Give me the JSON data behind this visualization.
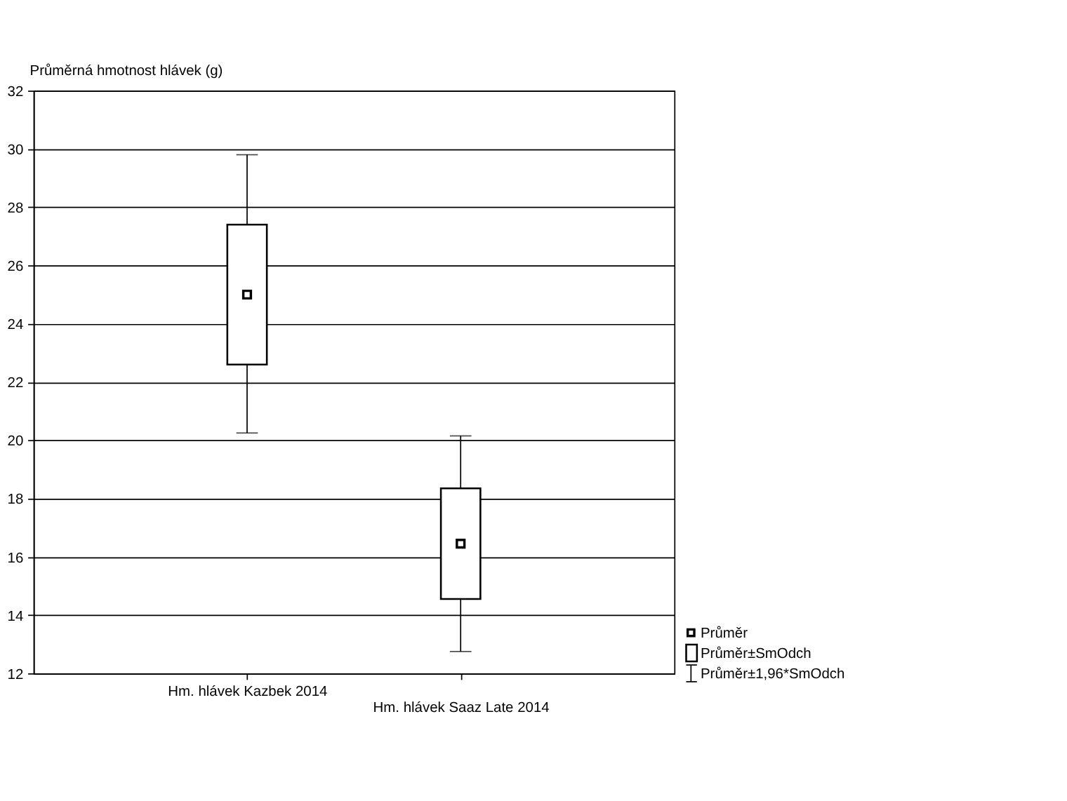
{
  "chart_data": {
    "type": "box",
    "title": "Průměrná hmotnost hlávek (g)",
    "categories": [
      "Hm. hlávek Kazbek 2014",
      "Hm. hlávek Saaz Late 2014"
    ],
    "boxes": [
      {
        "low": 20.25,
        "q1": 22.6,
        "median": 25.0,
        "q3": 27.4,
        "high": 29.8
      },
      {
        "low": 12.75,
        "q1": 14.55,
        "median": 16.45,
        "q3": 18.35,
        "high": 20.15
      }
    ],
    "ylim": [
      12,
      32
    ],
    "yticks": [
      12,
      14,
      16,
      18,
      20,
      22,
      24,
      26,
      28,
      30,
      32
    ],
    "grid": "y",
    "marker": "square",
    "annotations": [
      "Průměr",
      "Průměr±SmOdch",
      "Průměr±1,96*SmOdch"
    ]
  }
}
